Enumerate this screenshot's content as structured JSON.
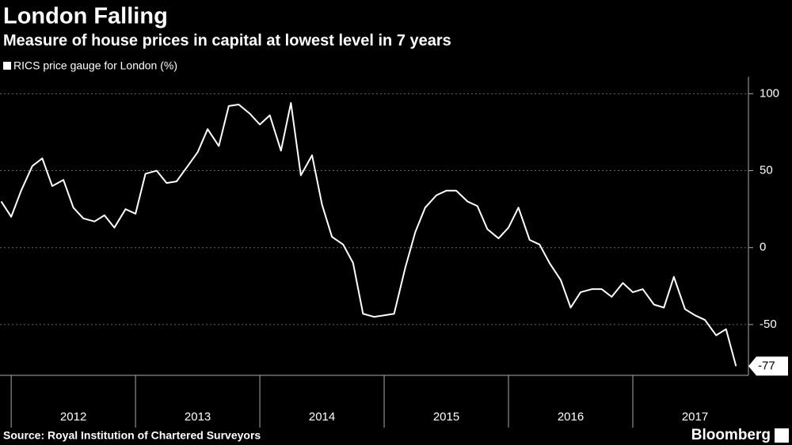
{
  "chart_data": {
    "type": "line",
    "title": "London Falling",
    "subtitle": "Measure of house prices in capital at lowest level in 7 years",
    "source": "Source: Royal Institution of Chartered Surveyors",
    "brand": "Bloomberg",
    "x": [
      2011.92,
      2012.0,
      2012.08,
      2012.17,
      2012.25,
      2012.33,
      2012.42,
      2012.5,
      2012.58,
      2012.67,
      2012.75,
      2012.83,
      2012.92,
      2013.0,
      2013.08,
      2013.17,
      2013.25,
      2013.33,
      2013.42,
      2013.5,
      2013.58,
      2013.67,
      2013.75,
      2013.83,
      2013.92,
      2014.0,
      2014.08,
      2014.17,
      2014.25,
      2014.33,
      2014.42,
      2014.5,
      2014.58,
      2014.67,
      2014.75,
      2014.83,
      2014.92,
      2015.0,
      2015.08,
      2015.17,
      2015.25,
      2015.33,
      2015.42,
      2015.5,
      2015.58,
      2015.67,
      2015.75,
      2015.83,
      2015.92,
      2016.0,
      2016.08,
      2016.17,
      2016.25,
      2016.33,
      2016.42,
      2016.5,
      2016.58,
      2016.67,
      2016.75,
      2016.83,
      2016.92,
      2017.0,
      2017.08,
      2017.17,
      2017.25,
      2017.33,
      2017.42,
      2017.5,
      2017.58,
      2017.67,
      2017.75,
      2017.83
    ],
    "series": [
      {
        "name": "RICS price gauge for London (%)",
        "color": "#ffffff",
        "values": [
          30,
          20,
          37,
          53,
          58,
          40,
          44,
          26,
          19,
          17,
          21,
          13,
          25,
          22,
          48,
          50,
          42,
          43,
          53,
          62,
          77,
          66,
          92,
          93,
          87,
          80,
          86,
          63,
          94,
          47,
          60,
          28,
          7,
          2,
          -10,
          -43,
          -45,
          -44,
          -43,
          -13,
          10,
          26,
          34,
          37,
          37,
          30,
          27,
          12,
          6,
          13,
          26,
          5,
          2,
          -10,
          -21,
          -39,
          -29,
          -27,
          -27,
          -32,
          -23,
          -29,
          -27,
          -37,
          -39,
          -19,
          -40,
          -44,
          -47,
          -57,
          -53,
          -77
        ]
      }
    ],
    "xlim": [
      2011.91,
      2017.93
    ],
    "xticks": [
      {
        "value": 2012.5,
        "label": "2012"
      },
      {
        "value": 2013.5,
        "label": "2013"
      },
      {
        "value": 2014.5,
        "label": "2014"
      },
      {
        "value": 2015.5,
        "label": "2015"
      },
      {
        "value": 2016.5,
        "label": "2016"
      },
      {
        "value": 2017.5,
        "label": "2017"
      }
    ],
    "ylim": [
      -83,
      111
    ],
    "yticks": [
      -50,
      0,
      50,
      100
    ],
    "grid": true
  }
}
